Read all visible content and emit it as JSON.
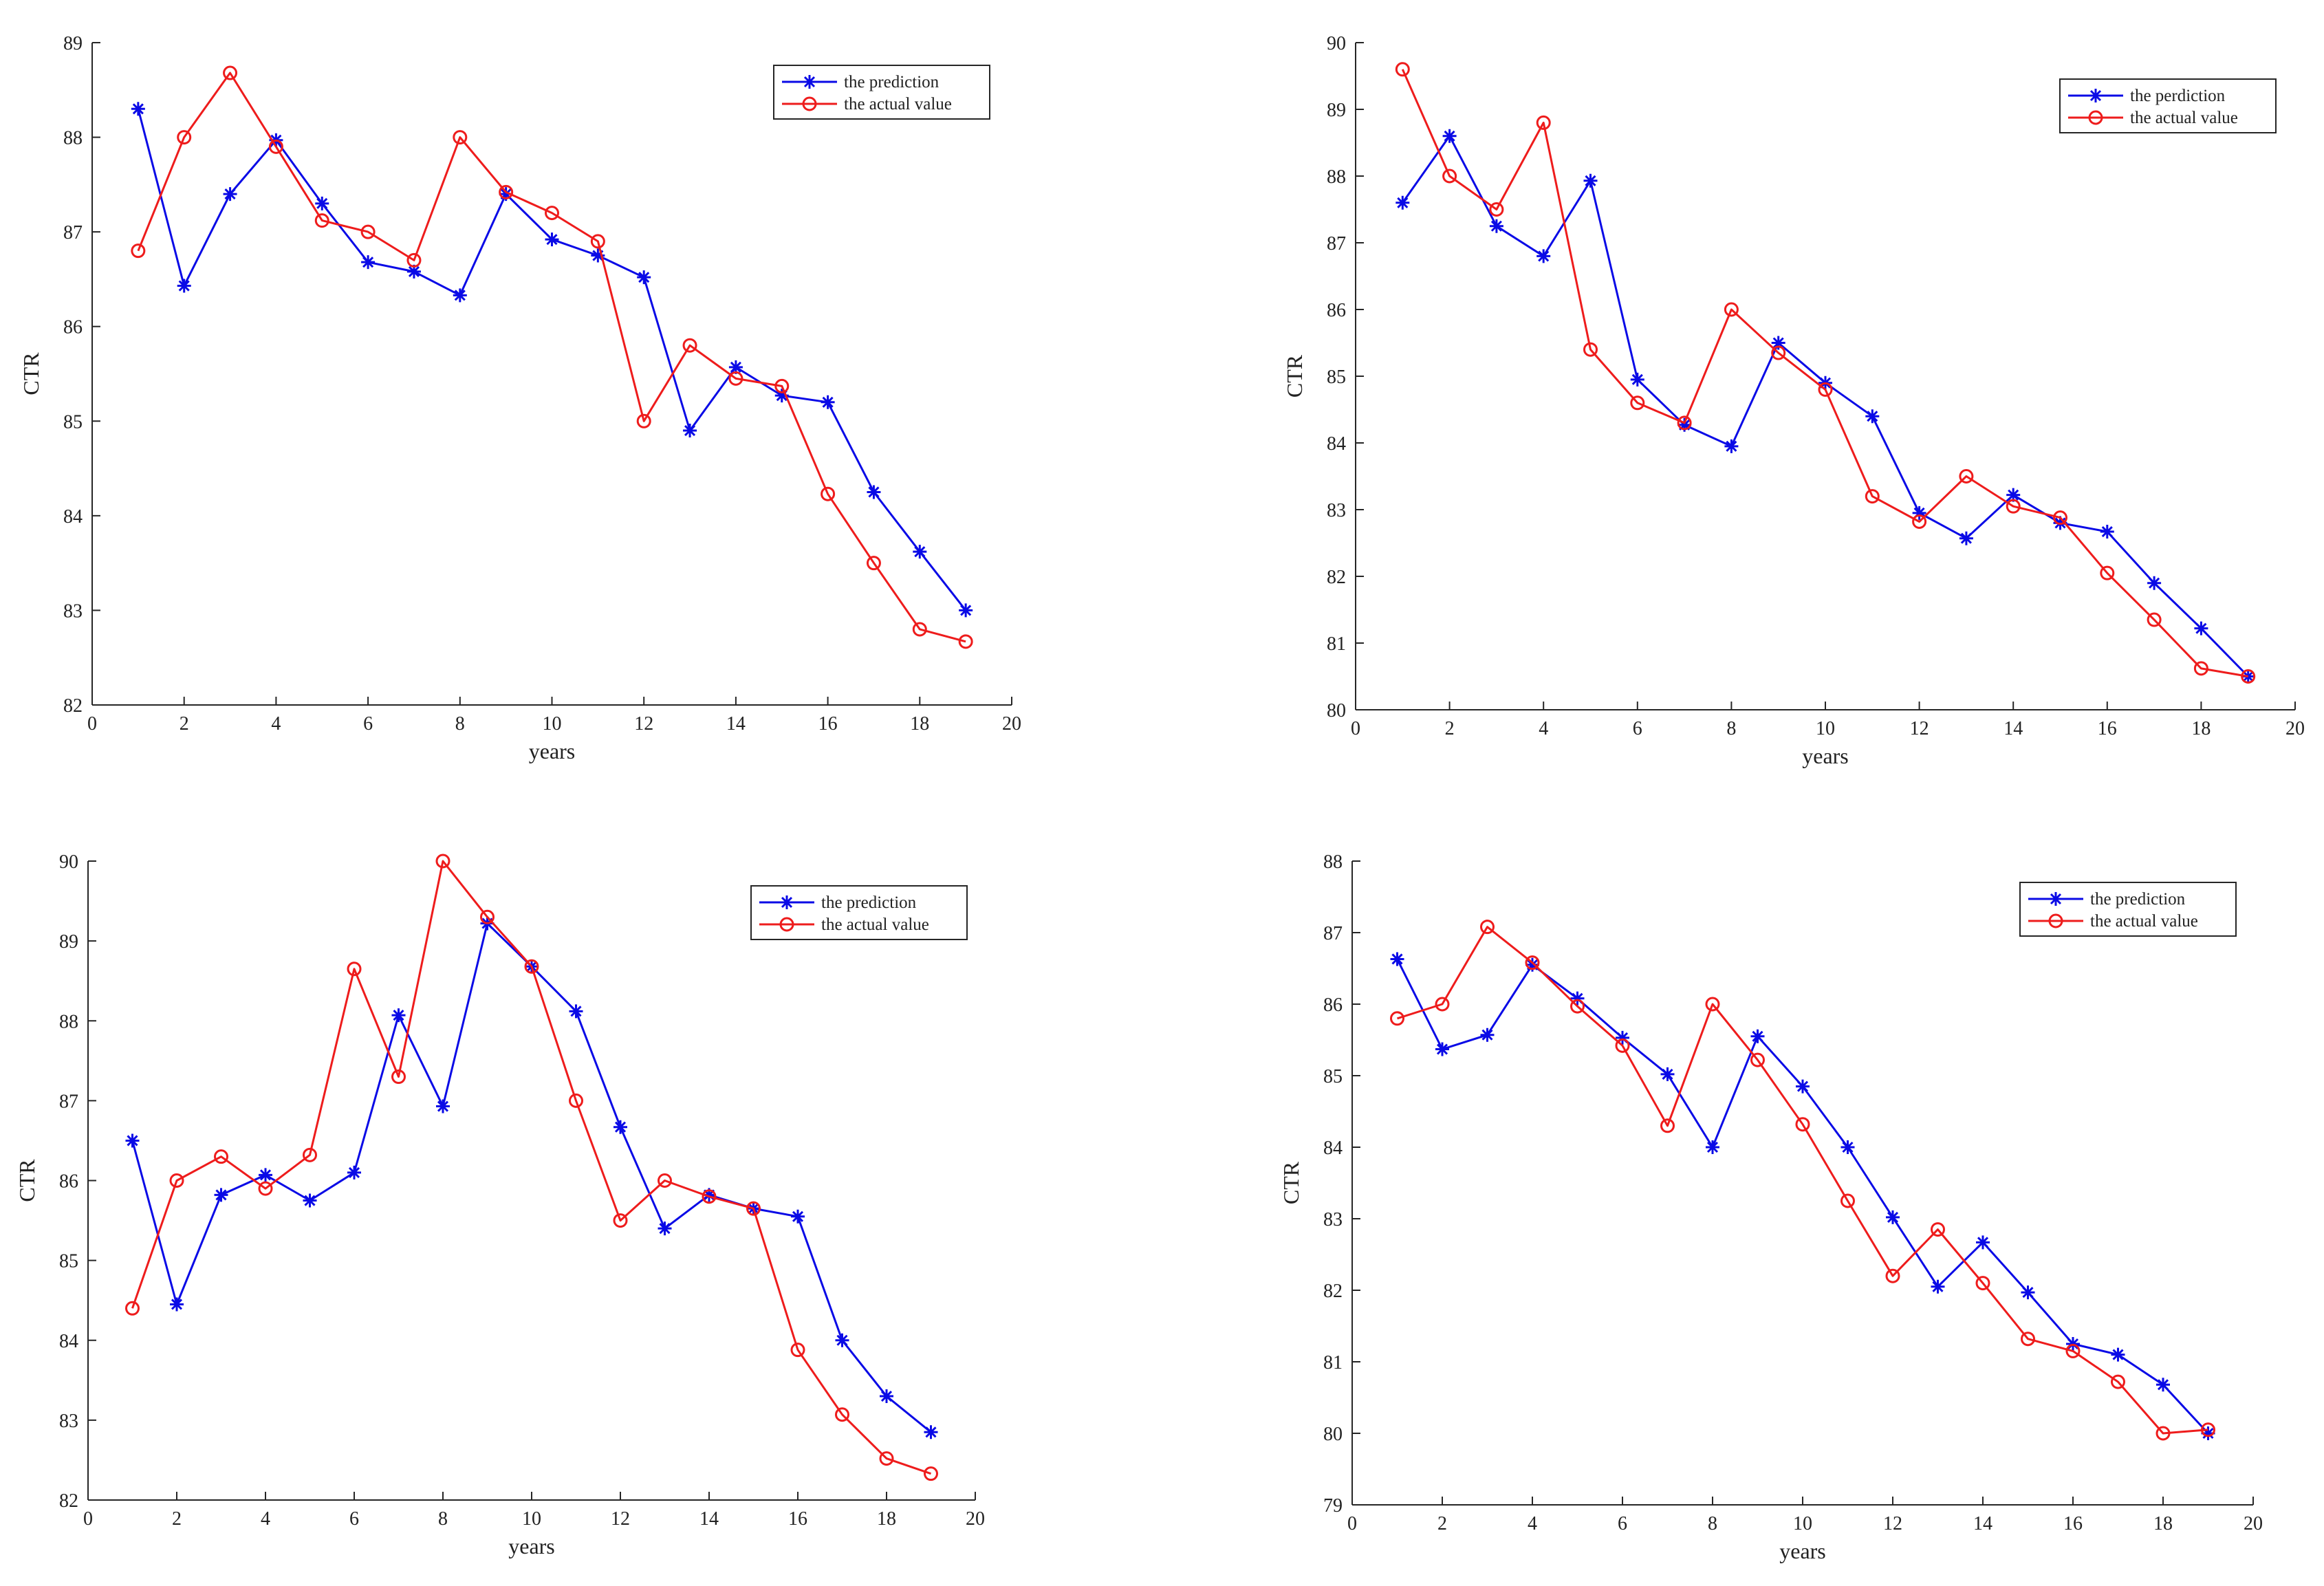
{
  "colors": {
    "prediction": "#0a0ae6",
    "actual": "#ee1c1c",
    "axis": "#262626",
    "background": "#ffffff"
  },
  "chart_data": [
    {
      "type": "line",
      "title": "",
      "xlabel": "years",
      "ylabel": "CTR",
      "xlim": [
        0,
        20
      ],
      "ylim": [
        82,
        89
      ],
      "xticks": [
        0,
        2,
        4,
        6,
        8,
        10,
        12,
        14,
        16,
        18,
        20
      ],
      "yticks": [
        82,
        83,
        84,
        85,
        86,
        87,
        88,
        89
      ],
      "legend_position": "top-right",
      "x": [
        1,
        2,
        3,
        4,
        5,
        6,
        7,
        8,
        9,
        10,
        11,
        12,
        13,
        14,
        15,
        16,
        17,
        18,
        19
      ],
      "series": [
        {
          "name": "the prediction",
          "marker": "star",
          "color_key": "prediction",
          "values": [
            88.3,
            86.43,
            87.4,
            87.97,
            87.3,
            86.68,
            86.58,
            86.33,
            87.4,
            86.92,
            86.75,
            86.52,
            84.9,
            85.57,
            85.27,
            85.2,
            84.25,
            83.62,
            83.0
          ]
        },
        {
          "name": "the actual value",
          "marker": "circle",
          "color_key": "actual",
          "values": [
            86.8,
            88.0,
            88.68,
            87.9,
            87.12,
            87.0,
            86.7,
            88.0,
            87.42,
            87.2,
            86.9,
            85.0,
            85.8,
            85.45,
            85.37,
            84.23,
            83.5,
            82.8,
            82.67
          ]
        }
      ]
    },
    {
      "type": "line",
      "title": "",
      "xlabel": "years",
      "ylabel": "CTR",
      "xlim": [
        0,
        20
      ],
      "ylim": [
        80,
        90
      ],
      "xticks": [
        0,
        2,
        4,
        6,
        8,
        10,
        12,
        14,
        16,
        18,
        20
      ],
      "yticks": [
        80,
        81,
        82,
        83,
        84,
        85,
        86,
        87,
        88,
        89,
        90
      ],
      "legend_position": "top-right",
      "x": [
        1,
        2,
        3,
        4,
        5,
        6,
        7,
        8,
        9,
        10,
        11,
        12,
        13,
        14,
        15,
        16,
        17,
        18,
        19
      ],
      "series": [
        {
          "name": "the perdiction",
          "marker": "star",
          "color_key": "prediction",
          "values": [
            87.6,
            88.6,
            87.25,
            86.8,
            87.93,
            84.95,
            84.27,
            83.95,
            85.5,
            84.9,
            84.4,
            82.95,
            82.57,
            83.22,
            82.8,
            82.67,
            81.9,
            81.22,
            80.5
          ]
        },
        {
          "name": "the actual value",
          "marker": "circle",
          "color_key": "actual",
          "values": [
            89.6,
            88.0,
            87.5,
            88.8,
            85.4,
            84.6,
            84.3,
            86.0,
            85.35,
            84.8,
            83.2,
            82.82,
            83.5,
            83.05,
            82.88,
            82.05,
            81.35,
            80.62,
            80.5
          ]
        }
      ]
    },
    {
      "type": "line",
      "title": "",
      "xlabel": "years",
      "ylabel": "CTR",
      "xlim": [
        0,
        20
      ],
      "ylim": [
        82,
        90
      ],
      "xticks": [
        0,
        2,
        4,
        6,
        8,
        10,
        12,
        14,
        16,
        18,
        20
      ],
      "yticks": [
        82,
        83,
        84,
        85,
        86,
        87,
        88,
        89,
        90
      ],
      "legend_position": "top-right",
      "x": [
        1,
        2,
        3,
        4,
        5,
        6,
        7,
        8,
        9,
        10,
        11,
        12,
        13,
        14,
        15,
        16,
        17,
        18,
        19
      ],
      "series": [
        {
          "name": "the prediction",
          "marker": "star",
          "color_key": "prediction",
          "values": [
            86.5,
            84.45,
            85.82,
            86.07,
            85.75,
            86.1,
            88.07,
            86.93,
            89.22,
            88.68,
            88.12,
            86.67,
            85.4,
            85.82,
            85.65,
            85.55,
            84.0,
            83.3,
            82.85
          ]
        },
        {
          "name": "the actual value",
          "marker": "circle",
          "color_key": "actual",
          "values": [
            84.4,
            86.0,
            86.3,
            85.9,
            86.32,
            88.65,
            87.3,
            90.0,
            89.3,
            88.68,
            87.0,
            85.5,
            86.0,
            85.8,
            85.65,
            83.88,
            83.07,
            82.52,
            82.33
          ]
        }
      ]
    },
    {
      "type": "line",
      "title": "",
      "xlabel": "years",
      "ylabel": "CTR",
      "xlim": [
        0,
        20
      ],
      "ylim": [
        79,
        88
      ],
      "xticks": [
        0,
        2,
        4,
        6,
        8,
        10,
        12,
        14,
        16,
        18,
        20
      ],
      "yticks": [
        79,
        80,
        81,
        82,
        83,
        84,
        85,
        86,
        87,
        88
      ],
      "legend_position": "top-right",
      "x": [
        1,
        2,
        3,
        4,
        5,
        6,
        7,
        8,
        9,
        10,
        11,
        12,
        13,
        14,
        15,
        16,
        17,
        18,
        19
      ],
      "series": [
        {
          "name": "the prediction",
          "marker": "star",
          "color_key": "prediction",
          "values": [
            86.63,
            85.37,
            85.57,
            86.55,
            86.08,
            85.53,
            85.02,
            84.0,
            85.55,
            84.85,
            84.0,
            83.02,
            82.05,
            82.67,
            81.97,
            81.25,
            81.1,
            80.68,
            80.0
          ]
        },
        {
          "name": "the actual value",
          "marker": "circle",
          "color_key": "actual",
          "values": [
            85.8,
            86.0,
            87.08,
            86.58,
            85.97,
            85.42,
            84.3,
            86.0,
            85.22,
            84.32,
            83.25,
            82.2,
            82.85,
            82.1,
            81.32,
            81.15,
            80.72,
            80.0,
            80.05
          ]
        }
      ]
    }
  ]
}
